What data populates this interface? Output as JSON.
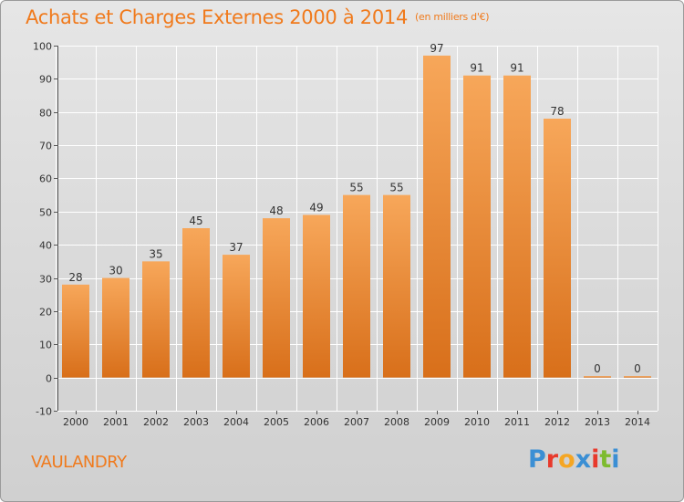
{
  "header": {
    "title": "Achats et Charges Externes 2000 à 2014",
    "unit": "(en milliers d'€)"
  },
  "footer": {
    "commune": "VAULANDRY",
    "brand": "Proxiti",
    "brand_colors": [
      "#3b8fd4",
      "#e8392b",
      "#f5a623",
      "#3b8fd4",
      "#e8392b",
      "#7dbb2e",
      "#3b8fd4"
    ]
  },
  "colors": {
    "bar_top": "#f7a75a",
    "bar_bottom": "#d86f1a",
    "accent": "#f07a1c",
    "grid": "#ffffff"
  },
  "chart_data": {
    "type": "bar",
    "title": "Achats et Charges Externes 2000 à 2014",
    "categories": [
      "2000",
      "2001",
      "2002",
      "2003",
      "2004",
      "2005",
      "2006",
      "2007",
      "2008",
      "2009",
      "2010",
      "2011",
      "2012",
      "2013",
      "2014"
    ],
    "values": [
      28,
      30,
      35,
      45,
      37,
      48,
      49,
      55,
      55,
      97,
      91,
      91,
      78,
      0,
      0
    ],
    "ylim": [
      -10,
      100
    ],
    "yticks": [
      -10,
      0,
      10,
      20,
      30,
      40,
      50,
      60,
      70,
      80,
      90,
      100
    ],
    "grid": true,
    "xlabel": "",
    "ylabel": ""
  }
}
